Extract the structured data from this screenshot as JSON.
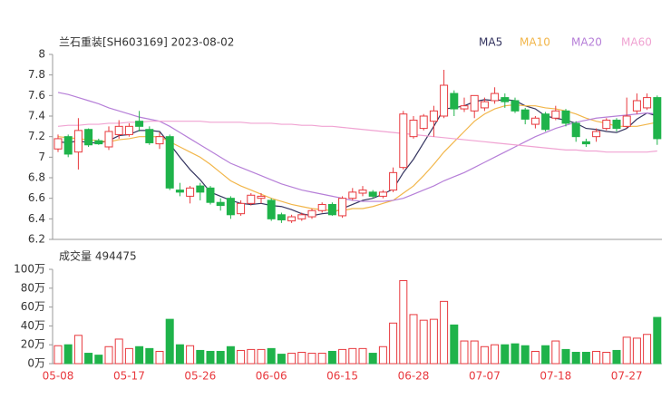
{
  "chart_data": [
    {
      "type": "candlestick",
      "title": "兰石重装[SH603169] 2023-08-02",
      "up_color": "#e8383d",
      "down_color": "#1fb34a",
      "categories": [
        "05-08",
        null,
        null,
        null,
        null,
        null,
        null,
        "05-17",
        null,
        null,
        null,
        null,
        null,
        null,
        "05-26",
        null,
        null,
        null,
        null,
        null,
        null,
        "06-06",
        null,
        null,
        null,
        null,
        null,
        null,
        "06-15",
        null,
        null,
        null,
        null,
        null,
        null,
        "06-28",
        null,
        null,
        null,
        null,
        null,
        null,
        "07-07",
        null,
        null,
        null,
        null,
        null,
        null,
        "07-18",
        null,
        null,
        null,
        null,
        null,
        null,
        "07-27",
        null,
        null,
        null
      ],
      "open": [
        7.08,
        7.2,
        7.05,
        7.27,
        7.16,
        7.1,
        7.22,
        7.22,
        7.35,
        7.27,
        7.13,
        7.2,
        6.68,
        6.62,
        6.72,
        6.7,
        6.56,
        6.6,
        6.45,
        6.55,
        6.6,
        6.58,
        6.44,
        6.38,
        6.4,
        6.42,
        6.48,
        6.54,
        6.43,
        6.6,
        6.65,
        6.66,
        6.62,
        6.68,
        6.9,
        7.2,
        7.28,
        7.35,
        7.4,
        7.62,
        7.47,
        7.45,
        7.48,
        7.55,
        7.58,
        7.55,
        7.46,
        7.32,
        7.42,
        7.38,
        7.45,
        7.33,
        7.15,
        7.2,
        7.28,
        7.36,
        7.3,
        7.45,
        7.48,
        7.58
      ],
      "high": [
        7.22,
        7.22,
        7.38,
        7.28,
        7.18,
        7.3,
        7.36,
        7.33,
        7.45,
        7.3,
        7.24,
        7.22,
        6.75,
        6.72,
        6.75,
        6.72,
        6.6,
        6.62,
        6.58,
        6.65,
        6.65,
        6.6,
        6.46,
        6.44,
        6.46,
        6.5,
        6.56,
        6.56,
        6.62,
        6.7,
        6.72,
        6.68,
        6.68,
        6.9,
        7.45,
        7.4,
        7.42,
        7.5,
        7.85,
        7.65,
        7.58,
        7.6,
        7.58,
        7.68,
        7.62,
        7.58,
        7.48,
        7.4,
        7.44,
        7.5,
        7.47,
        7.35,
        7.18,
        7.28,
        7.38,
        7.38,
        7.58,
        7.62,
        7.62,
        7.6
      ],
      "low": [
        7.05,
        7.0,
        6.88,
        7.1,
        7.12,
        7.07,
        7.18,
        7.2,
        7.25,
        7.12,
        7.08,
        6.68,
        6.62,
        6.55,
        6.58,
        6.54,
        6.48,
        6.4,
        6.43,
        6.53,
        6.55,
        6.38,
        6.36,
        6.36,
        6.38,
        6.4,
        6.46,
        6.43,
        6.41,
        6.58,
        6.62,
        6.6,
        6.6,
        6.66,
        6.88,
        7.18,
        7.26,
        7.2,
        7.38,
        7.4,
        7.44,
        7.38,
        7.45,
        7.52,
        7.48,
        7.43,
        7.32,
        7.28,
        7.25,
        7.36,
        7.3,
        7.15,
        7.1,
        7.15,
        7.26,
        7.25,
        7.28,
        7.42,
        7.46,
        7.12
      ],
      "close": [
        7.18,
        7.03,
        7.26,
        7.12,
        7.13,
        7.25,
        7.3,
        7.3,
        7.3,
        7.14,
        7.2,
        6.7,
        6.66,
        6.7,
        6.66,
        6.56,
        6.53,
        6.44,
        6.55,
        6.63,
        6.62,
        6.4,
        6.39,
        6.42,
        6.44,
        6.48,
        6.54,
        6.44,
        6.6,
        6.66,
        6.68,
        6.62,
        6.66,
        6.85,
        7.42,
        7.36,
        7.4,
        7.45,
        7.7,
        7.47,
        7.5,
        7.6,
        7.54,
        7.62,
        7.54,
        7.45,
        7.37,
        7.38,
        7.27,
        7.45,
        7.33,
        7.2,
        7.13,
        7.25,
        7.36,
        7.28,
        7.4,
        7.55,
        7.58,
        7.18
      ],
      "series": [
        {
          "name": "MA5",
          "color": "#34345f",
          "values": [
            7.15,
            7.14,
            7.16,
            7.14,
            7.14,
            7.16,
            7.21,
            7.22,
            7.26,
            7.26,
            7.25,
            7.13,
            7.0,
            6.88,
            6.78,
            6.66,
            6.62,
            6.58,
            6.55,
            6.54,
            6.55,
            6.53,
            6.52,
            6.49,
            6.45,
            6.43,
            6.45,
            6.46,
            6.5,
            6.54,
            6.58,
            6.6,
            6.64,
            6.69,
            6.85,
            6.98,
            7.14,
            7.3,
            7.47,
            7.48,
            7.5,
            7.54,
            7.56,
            7.55,
            7.56,
            7.55,
            7.5,
            7.47,
            7.4,
            7.38,
            7.36,
            7.33,
            7.28,
            7.27,
            7.25,
            7.24,
            7.28,
            7.37,
            7.43,
            7.4
          ]
        },
        {
          "name": "MA10",
          "color": "#f2b64a",
          "values": [
            7.2,
            7.19,
            7.18,
            7.17,
            7.16,
            7.15,
            7.17,
            7.18,
            7.2,
            7.2,
            7.2,
            7.15,
            7.1,
            7.05,
            7.0,
            6.93,
            6.85,
            6.77,
            6.72,
            6.68,
            6.64,
            6.6,
            6.57,
            6.54,
            6.52,
            6.5,
            6.49,
            6.48,
            6.48,
            6.5,
            6.5,
            6.52,
            6.55,
            6.58,
            6.65,
            6.72,
            6.82,
            6.93,
            7.05,
            7.15,
            7.25,
            7.35,
            7.42,
            7.47,
            7.5,
            7.51,
            7.5,
            7.5,
            7.48,
            7.47,
            7.45,
            7.42,
            7.38,
            7.35,
            7.33,
            7.3,
            7.3,
            7.3,
            7.32,
            7.34
          ]
        },
        {
          "name": "MA20",
          "color": "#b67fd8",
          "values": [
            7.63,
            7.61,
            7.58,
            7.55,
            7.52,
            7.48,
            7.45,
            7.42,
            7.39,
            7.37,
            7.35,
            7.3,
            7.24,
            7.18,
            7.12,
            7.06,
            7.0,
            6.94,
            6.9,
            6.86,
            6.82,
            6.78,
            6.74,
            6.71,
            6.68,
            6.66,
            6.64,
            6.62,
            6.6,
            6.58,
            6.57,
            6.57,
            6.57,
            6.58,
            6.6,
            6.64,
            6.68,
            6.72,
            6.77,
            6.81,
            6.85,
            6.9,
            6.95,
            7.0,
            7.05,
            7.1,
            7.15,
            7.2,
            7.24,
            7.28,
            7.31,
            7.34,
            7.36,
            7.38,
            7.39,
            7.4,
            7.41,
            7.42,
            7.43,
            7.42
          ]
        },
        {
          "name": "MA60",
          "color": "#f0a3d2",
          "values": [
            7.3,
            7.31,
            7.31,
            7.32,
            7.32,
            7.33,
            7.33,
            7.34,
            7.34,
            7.35,
            7.35,
            7.35,
            7.35,
            7.35,
            7.35,
            7.34,
            7.34,
            7.34,
            7.34,
            7.33,
            7.33,
            7.33,
            7.32,
            7.32,
            7.31,
            7.31,
            7.3,
            7.3,
            7.29,
            7.28,
            7.27,
            7.26,
            7.25,
            7.24,
            7.23,
            7.22,
            7.21,
            7.2,
            7.19,
            7.18,
            7.17,
            7.16,
            7.15,
            7.14,
            7.13,
            7.12,
            7.11,
            7.1,
            7.09,
            7.08,
            7.07,
            7.07,
            7.06,
            7.06,
            7.05,
            7.05,
            7.05,
            7.05,
            7.05,
            7.06
          ]
        }
      ],
      "ylim": [
        6.2,
        8
      ],
      "yticks": [
        8,
        7.8,
        7.6,
        7.4,
        7.2,
        7,
        6.8,
        6.6,
        6.4,
        6.2
      ]
    },
    {
      "type": "bar",
      "title": "成交量 494475",
      "values": [
        19,
        20,
        30,
        11,
        9,
        18,
        26,
        16,
        18,
        16,
        13,
        47,
        20,
        19,
        14,
        13,
        13,
        18,
        14,
        15,
        15,
        16,
        10,
        11,
        12,
        11,
        11,
        13,
        15,
        16,
        16,
        11,
        18,
        43,
        88,
        52,
        46,
        47,
        66,
        41,
        24,
        24,
        18,
        20,
        20,
        21,
        19,
        13,
        19,
        24,
        15,
        12,
        12,
        13,
        12,
        14,
        28,
        27,
        31,
        49
      ],
      "ylim": [
        0,
        100
      ],
      "yticks": [
        {
          "value": 100,
          "label": "100万"
        },
        {
          "value": 80,
          "label": "80万"
        },
        {
          "value": 60,
          "label": "60万"
        },
        {
          "value": 40,
          "label": "40万"
        },
        {
          "value": 20,
          "label": "20万"
        },
        {
          "value": 0,
          "label": "0万"
        }
      ]
    }
  ]
}
